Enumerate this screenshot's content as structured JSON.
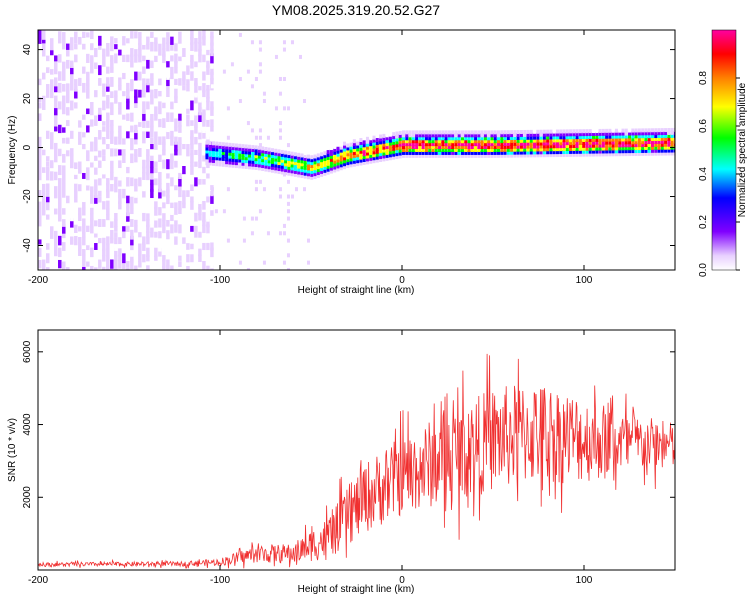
{
  "figure_title": "YM08.2025.319.20.52.G27",
  "chart_data": [
    {
      "type": "heatmap",
      "name": "spectrogram",
      "xlabel": "Height of straight line (km)",
      "ylabel": "Frequency (Hz)",
      "xlim": [
        -200,
        150
      ],
      "ylim": [
        -50,
        48
      ],
      "xticks": [
        -200,
        -100,
        0,
        100
      ],
      "xtick_labels": [
        "-200",
        "-100",
        "0",
        "100"
      ],
      "yticks": [
        -40,
        -20,
        0,
        20,
        40
      ],
      "ytick_labels": [
        "-40",
        "-20",
        "0",
        "20",
        "40"
      ],
      "description_values": {
        "noise_region_km": [
          -200,
          -105
        ],
        "signal_start_km": -108,
        "signal_freq_hz_at": [
          [
            -108,
            -2
          ],
          [
            -80,
            -4
          ],
          [
            -50,
            -8
          ],
          [
            -30,
            -3
          ],
          [
            0,
            1
          ],
          [
            50,
            1
          ],
          [
            150,
            2
          ]
        ]
      },
      "colorbar": {
        "label": "Normalized spectral amplitude",
        "range": [
          0,
          1
        ],
        "ticks": [
          0.0,
          0.2,
          0.4,
          0.6,
          0.8
        ],
        "tick_labels": [
          "0.0",
          "0.2",
          "0.4",
          "0.6",
          "0.8"
        ],
        "colors": [
          "#ffffff",
          "#e8d0ff",
          "#8000ff",
          "#0000ff",
          "#00ffff",
          "#00ff00",
          "#ffff00",
          "#ff8000",
          "#ff0000",
          "#ff00a0"
        ]
      }
    },
    {
      "type": "line",
      "name": "snr",
      "xlabel": "Height of straight line (km)",
      "ylabel": "SNR (10 * v/v)",
      "xlim": [
        -200,
        150
      ],
      "ylim": [
        0,
        6600
      ],
      "xticks": [
        -200,
        -100,
        0,
        100
      ],
      "xtick_labels": [
        "-200",
        "-100",
        "0",
        "100"
      ],
      "yticks": [
        2000,
        4000,
        6000
      ],
      "ytick_labels": [
        "2000",
        "4000",
        "6000"
      ],
      "color": "#f03030",
      "envelope": [
        {
          "x": -200,
          "mean": 150,
          "amp": 100
        },
        {
          "x": -120,
          "mean": 170,
          "amp": 120
        },
        {
          "x": -100,
          "mean": 220,
          "amp": 180
        },
        {
          "x": -80,
          "mean": 450,
          "amp": 450
        },
        {
          "x": -60,
          "mean": 450,
          "amp": 500
        },
        {
          "x": -40,
          "mean": 900,
          "amp": 1100
        },
        {
          "x": -20,
          "mean": 2000,
          "amp": 1800
        },
        {
          "x": 0,
          "mean": 2600,
          "amp": 2000
        },
        {
          "x": 30,
          "mean": 3200,
          "amp": 2400
        },
        {
          "x": 50,
          "mean": 3600,
          "amp": 2600
        },
        {
          "x": 75,
          "mean": 3800,
          "amp": 2600
        },
        {
          "x": 100,
          "mean": 3600,
          "amp": 2200
        },
        {
          "x": 125,
          "mean": 3500,
          "amp": 1500
        },
        {
          "x": 150,
          "mean": 3400,
          "amp": 1200
        }
      ]
    }
  ]
}
